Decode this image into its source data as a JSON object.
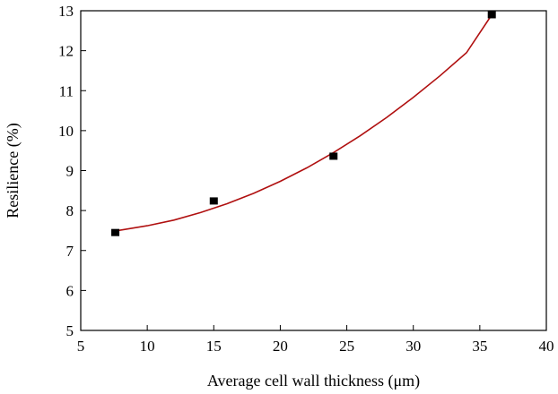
{
  "chart_data": {
    "type": "scatter",
    "title": "",
    "xlabel": "Average cell wall thickness (μm)",
    "ylabel": "Resilience (%)",
    "xlim": [
      5,
      40
    ],
    "ylim": [
      5,
      13
    ],
    "xticks": [
      5,
      10,
      15,
      20,
      25,
      30,
      35,
      40
    ],
    "yticks": [
      5,
      6,
      7,
      8,
      9,
      10,
      11,
      12,
      13
    ],
    "grid": false,
    "legend": "none",
    "series": [
      {
        "marker": "square",
        "color": "#000000",
        "points": [
          {
            "x": 7.6,
            "y": 7.45
          },
          {
            "x": 15.0,
            "y": 8.24
          },
          {
            "x": 24.0,
            "y": 9.36
          },
          {
            "x": 35.9,
            "y": 12.9
          }
        ]
      }
    ],
    "fit_curve": {
      "color": "#b01010",
      "x": [
        7.6,
        10,
        12,
        14,
        16,
        18,
        20,
        22,
        24,
        26,
        28,
        30,
        32,
        34,
        35.9
      ],
      "y": [
        7.49,
        7.62,
        7.76,
        7.95,
        8.17,
        8.43,
        8.73,
        9.07,
        9.45,
        9.87,
        10.33,
        10.83,
        11.37,
        11.95,
        12.9
      ]
    }
  }
}
